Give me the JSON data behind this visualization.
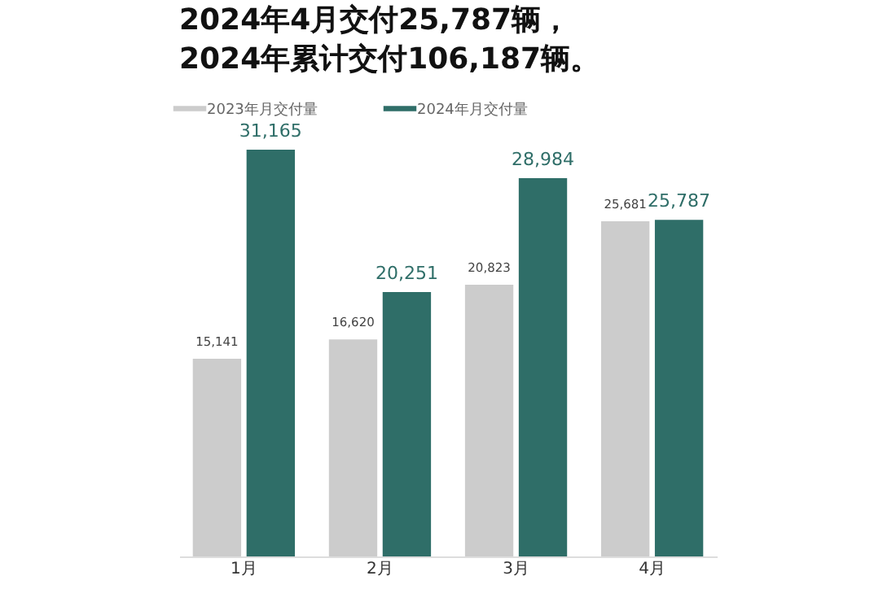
{
  "chart_data": {
    "type": "bar",
    "title": "2024年4月交付25,787辆，\n2024年累计交付106,187辆。",
    "categories": [
      "1月",
      "2月",
      "3月",
      "4月"
    ],
    "series": [
      {
        "name": "2023年月交付量",
        "color": "#cccccc",
        "values": [
          15141,
          16620,
          20823,
          25681
        ],
        "value_labels": [
          "15,141",
          "16,620",
          "20,823",
          "25,681"
        ]
      },
      {
        "name": "2024年月交付量",
        "color": "#2f6e68",
        "values": [
          31165,
          20251,
          28984,
          25787
        ],
        "value_labels": [
          "31,165",
          "20,251",
          "28,984",
          "25,787"
        ]
      }
    ],
    "legend": "top left"
  }
}
